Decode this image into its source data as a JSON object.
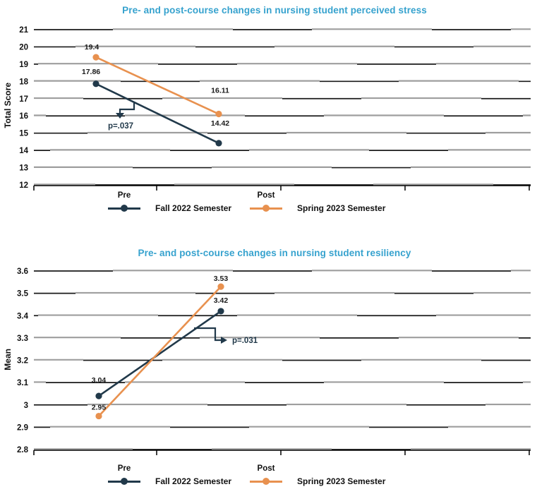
{
  "chart_data": [
    {
      "type": "line",
      "title": "Pre- and post-course changes in nursing student perceived stress",
      "title_color": "#36A2CE",
      "ylabel": "Total Score",
      "xlabel": "",
      "categories": [
        "Pre",
        "Post"
      ],
      "ylim": [
        12,
        21
      ],
      "ytick_step": 1,
      "grid": true,
      "legend_position": "bottom",
      "series": [
        {
          "name": "Fall 2022 Semester",
          "color": "#21394A",
          "values": [
            17.86,
            14.42
          ],
          "labels": [
            "17.86",
            "14.42"
          ]
        },
        {
          "name": "Spring 2023 Semester",
          "color": "#E8914F",
          "values": [
            19.4,
            16.11
          ],
          "labels": [
            "19.4",
            "16.11"
          ]
        }
      ],
      "annotation": {
        "label": "p=.037"
      }
    },
    {
      "type": "line",
      "title": "Pre- and post-course changes in nursing student resiliency",
      "title_color": "#36A2CE",
      "ylabel": "Mean",
      "xlabel": "",
      "categories": [
        "Pre",
        "Post"
      ],
      "ylim": [
        2.8,
        3.6
      ],
      "ytick_step": 0.1,
      "grid": true,
      "legend_position": "bottom",
      "series": [
        {
          "name": "Fall 2022 Semester",
          "color": "#21394A",
          "values": [
            3.04,
            3.42
          ],
          "labels": [
            "3.04",
            "3.42"
          ]
        },
        {
          "name": "Spring 2023 Semester",
          "color": "#E8914F",
          "values": [
            2.95,
            3.53
          ],
          "labels": [
            "2.95",
            "3.53"
          ]
        }
      ],
      "annotation": {
        "label": "p=.031"
      }
    }
  ],
  "colors": {
    "grid_gray": "#9E9E9E",
    "grid_dark": "#1A1A1A",
    "axis": "#000000",
    "value_label": "#1A1A1A",
    "annotation": "#21394A"
  }
}
